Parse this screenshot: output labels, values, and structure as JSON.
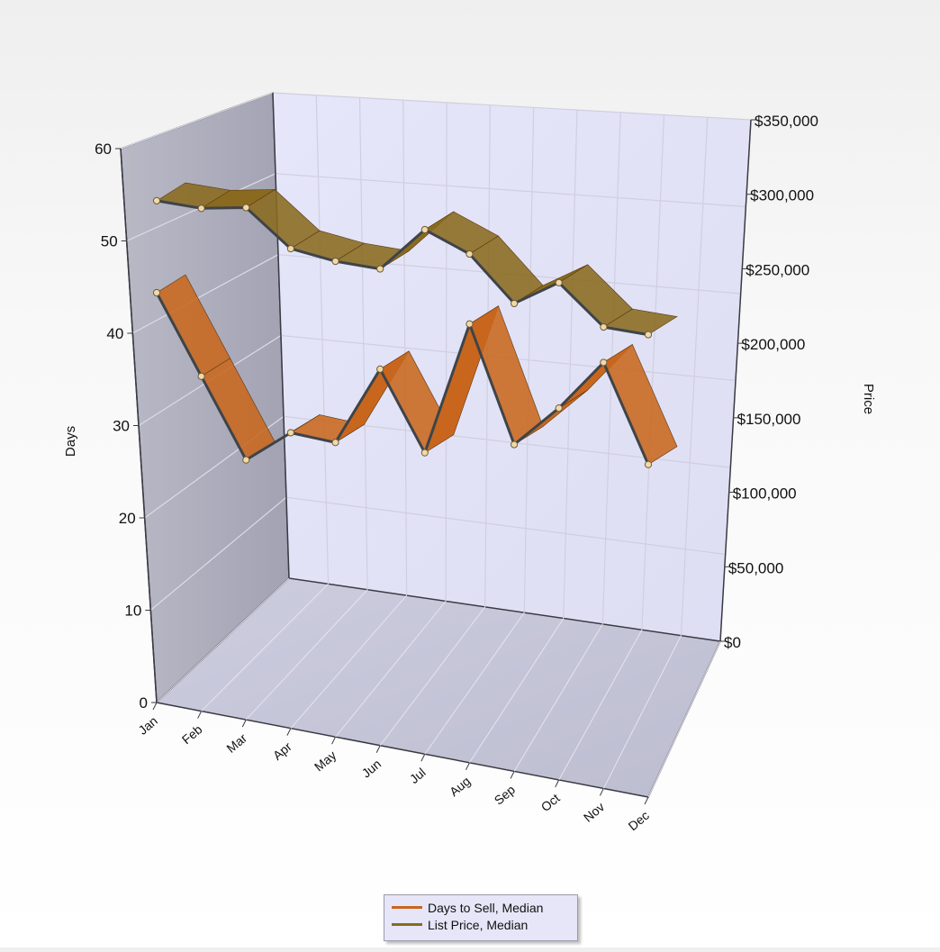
{
  "chart_data": {
    "type": "line",
    "style": "3d-ribbon",
    "categories": [
      "Jan",
      "Feb",
      "Mar",
      "Apr",
      "May",
      "Jun",
      "Jul",
      "Aug",
      "Sep",
      "Oct",
      "Nov",
      "Dec"
    ],
    "series": [
      {
        "name": "Days to Sell, Median",
        "axis": "left",
        "color": "#c8661e",
        "values": [
          44,
          36,
          28,
          32,
          32,
          41,
          33,
          48,
          36,
          41,
          47,
          37
        ]
      },
      {
        "name": "List Price, Median",
        "axis": "right",
        "color": "#8a6a1e",
        "values": [
          300000,
          300000,
          305000,
          285000,
          282000,
          282000,
          310000,
          300000,
          275000,
          292000,
          270000,
          270000
        ]
      }
    ],
    "left_axis": {
      "title": "Days",
      "ylim": [
        0,
        60
      ],
      "ticks": [
        0,
        10,
        20,
        30,
        40,
        50,
        60
      ],
      "tick_labels": [
        "0",
        "10",
        "20",
        "30",
        "40",
        "50",
        "60"
      ]
    },
    "right_axis": {
      "title": "Price",
      "ylim": [
        0,
        350000
      ],
      "ticks": [
        0,
        50000,
        100000,
        150000,
        200000,
        250000,
        300000,
        350000
      ],
      "tick_labels": [
        "$0",
        "$50,000",
        "$100,000",
        "$150,000",
        "$200,000",
        "$250,000",
        "$300,000",
        "$350,000"
      ]
    },
    "grid": true,
    "legend": "bottom-center"
  },
  "colors": {
    "days_fill": "#c8661e",
    "price_fill": "#8a6a1e",
    "wall_left": "#aaaab9",
    "wall_back": "#e2e2f7",
    "floor": "#c3c3d7"
  }
}
